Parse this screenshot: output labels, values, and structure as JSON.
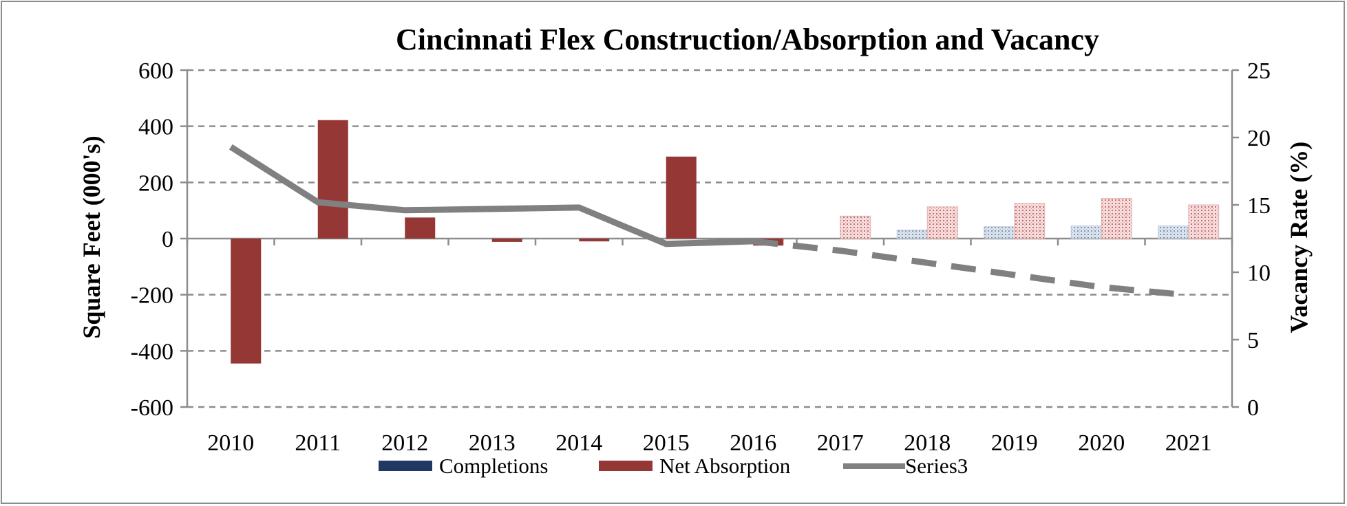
{
  "chart_data": {
    "type": "bar",
    "title": "Cincinnati Flex Construction/Absorption and Vacancy",
    "categories": [
      "2010",
      "2011",
      "2012",
      "2013",
      "2014",
      "2015",
      "2016",
      "2017",
      "2018",
      "2019",
      "2020",
      "2021"
    ],
    "forecast_start": "2017",
    "series": [
      {
        "name": "Completions",
        "type": "bar",
        "axis": "left",
        "color": "#1f3864",
        "values": [
          0,
          0,
          0,
          0,
          0,
          0,
          0,
          0,
          30,
          42,
          45,
          45
        ]
      },
      {
        "name": "Net Absorption",
        "type": "bar",
        "axis": "left",
        "color": "#953735",
        "values": [
          -445,
          422,
          75,
          -12,
          -10,
          292,
          -25,
          80,
          113,
          125,
          143,
          120
        ]
      },
      {
        "name": "Series3",
        "type": "line",
        "axis": "right",
        "color": "#808080",
        "values": [
          19.3,
          15.2,
          14.6,
          14.7,
          14.8,
          12.1,
          12.3,
          11.6,
          10.7,
          9.8,
          8.9,
          8.3
        ]
      }
    ],
    "ylabel": "Square Feet (000's)",
    "ylim": [
      -600,
      600
    ],
    "yticks": [
      -600,
      -400,
      -200,
      0,
      200,
      400,
      600
    ],
    "y2label": "Vacancy Rate (%)",
    "y2lim": [
      0,
      25
    ],
    "y2ticks": [
      0,
      5,
      10,
      15,
      20,
      25
    ],
    "grid": true,
    "legend_position": "bottom"
  }
}
